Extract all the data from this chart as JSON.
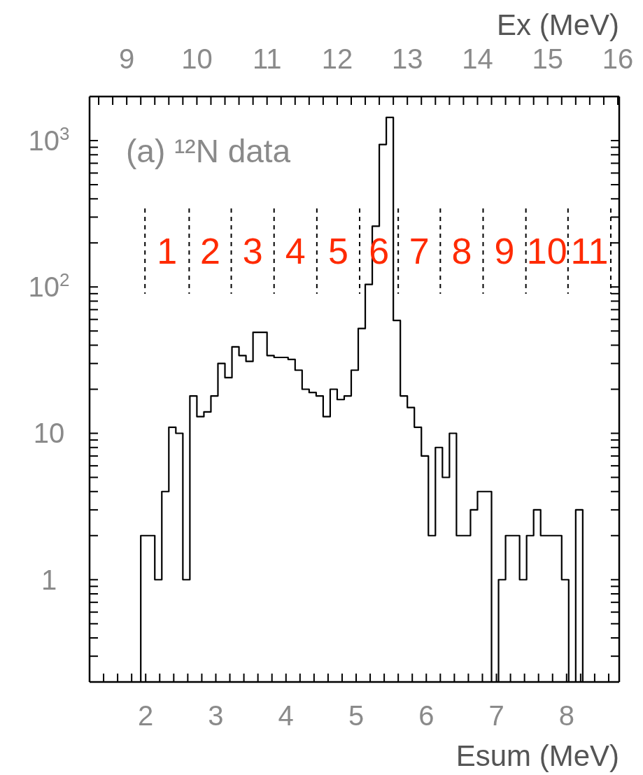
{
  "chart_data": {
    "type": "histogram",
    "title": "(a) ¹²N data",
    "xlabel": "Esum (MeV)",
    "x2label": "Ex (MeV)",
    "log": "y",
    "xlim": [
      1.2,
      8.75
    ],
    "x2lim": [
      8.47,
      16.02
    ],
    "ylim": [
      0.2,
      2000
    ],
    "xticks": [
      {
        "value": 1.2,
        "label": null
      },
      {
        "value": 1.4,
        "label": null
      },
      {
        "value": 1.6,
        "label": null
      },
      {
        "value": 1.8,
        "label": null
      },
      2,
      {
        "value": 2.2,
        "label": null
      },
      {
        "value": 2.4,
        "label": null
      },
      {
        "value": 2.6,
        "label": null
      },
      {
        "value": 2.8,
        "label": null
      },
      3,
      {
        "value": 3.2,
        "label": null
      },
      {
        "value": 3.4,
        "label": null
      },
      {
        "value": 3.6,
        "label": null
      },
      {
        "value": 3.8,
        "label": null
      },
      4,
      {
        "value": 4.2,
        "label": null
      },
      {
        "value": 4.4,
        "label": null
      },
      {
        "value": 4.6,
        "label": null
      },
      {
        "value": 4.8,
        "label": null
      },
      5,
      {
        "value": 5.2,
        "label": null
      },
      {
        "value": 5.4,
        "label": null
      },
      {
        "value": 5.6,
        "label": null
      },
      {
        "value": 5.8,
        "label": null
      },
      6,
      {
        "value": 6.2,
        "label": null
      },
      {
        "value": 6.4,
        "label": null
      },
      {
        "value": 6.6,
        "label": null
      },
      {
        "value": 6.8,
        "label": null
      },
      7,
      {
        "value": 7.2,
        "label": null
      },
      {
        "value": 7.4,
        "label": null
      },
      {
        "value": 7.6,
        "label": null
      },
      {
        "value": 7.8,
        "label": null
      },
      8,
      {
        "value": 8.2,
        "label": null
      },
      {
        "value": 8.4,
        "label": null
      },
      {
        "value": 8.6,
        "label": null
      }
    ],
    "x2ticks": [
      {
        "value": 8.6,
        "label": null
      },
      {
        "value": 8.8,
        "label": null
      },
      9,
      {
        "value": 9.2,
        "label": null
      },
      {
        "value": 9.4,
        "label": null
      },
      {
        "value": 9.6,
        "label": null
      },
      {
        "value": 9.8,
        "label": null
      },
      10,
      {
        "value": 10.2,
        "label": null
      },
      {
        "value": 10.4,
        "label": null
      },
      {
        "value": 10.6,
        "label": null
      },
      {
        "value": 10.8,
        "label": null
      },
      11,
      {
        "value": 11.2,
        "label": null
      },
      {
        "value": 11.4,
        "label": null
      },
      {
        "value": 11.6,
        "label": null
      },
      {
        "value": 11.8,
        "label": null
      },
      12,
      {
        "value": 12.2,
        "label": null
      },
      {
        "value": 12.4,
        "label": null
      },
      {
        "value": 12.6,
        "label": null
      },
      {
        "value": 12.8,
        "label": null
      },
      13,
      {
        "value": 13.2,
        "label": null
      },
      {
        "value": 13.4,
        "label": null
      },
      {
        "value": 13.6,
        "label": null
      },
      {
        "value": 13.8,
        "label": null
      },
      14,
      {
        "value": 14.2,
        "label": null
      },
      {
        "value": 14.4,
        "label": null
      },
      {
        "value": 14.6,
        "label": null
      },
      {
        "value": 14.8,
        "label": null
      },
      15,
      {
        "value": 15.2,
        "label": null
      },
      {
        "value": 15.4,
        "label": null
      },
      {
        "value": 15.6,
        "label": null
      },
      {
        "value": 15.8,
        "label": null
      },
      16
    ],
    "yticks": [
      {
        "value": 0.2,
        "label": null
      },
      {
        "value": 0.3,
        "label": null
      },
      {
        "value": 0.4,
        "label": null
      },
      {
        "value": 0.5,
        "label": null
      },
      {
        "value": 0.6,
        "label": null
      },
      {
        "value": 0.7,
        "label": null
      },
      {
        "value": 0.8,
        "label": null
      },
      {
        "value": 0.9,
        "label": null
      },
      1,
      {
        "value": 2,
        "label": null
      },
      {
        "value": 3,
        "label": null
      },
      {
        "value": 4,
        "label": null
      },
      {
        "value": 5,
        "label": null
      },
      {
        "value": 6,
        "label": null
      },
      {
        "value": 7,
        "label": null
      },
      {
        "value": 8,
        "label": null
      },
      {
        "value": 9,
        "label": null
      },
      10,
      {
        "value": 20,
        "label": null
      },
      {
        "value": 30,
        "label": null
      },
      {
        "value": 40,
        "label": null
      },
      {
        "value": 50,
        "label": null
      },
      {
        "value": 60,
        "label": null
      },
      {
        "value": 70,
        "label": null
      },
      {
        "value": 80,
        "label": null
      },
      {
        "value": 90,
        "label": null
      },
      {
        "value": 100,
        "label": "10$^{2}$"
      },
      {
        "value": 200,
        "label": null
      },
      {
        "value": 300,
        "label": null
      },
      {
        "value": 400,
        "label": null
      },
      {
        "value": 500,
        "label": null
      },
      {
        "value": 600,
        "label": null
      },
      {
        "value": 700,
        "label": null
      },
      {
        "value": 800,
        "label": null
      },
      {
        "value": 900,
        "label": null
      },
      {
        "value": 1000,
        "label": "10$^{3}$"
      }
    ],
    "color": "#000000",
    "bins": [
      1.93,
      2.03,
      2.13,
      2.23,
      2.33,
      2.43,
      2.53,
      2.63,
      2.73,
      2.83,
      2.93,
      3.03,
      3.13,
      3.23,
      3.33,
      3.43,
      3.53,
      3.63,
      3.73,
      3.83,
      3.93,
      4.03,
      4.13,
      4.23,
      4.33,
      4.43,
      4.53,
      4.63,
      4.73,
      4.83,
      4.93,
      5.03,
      5.13,
      5.23,
      5.33,
      5.43,
      5.53,
      5.63,
      5.73,
      5.83,
      5.93,
      6.03,
      6.13,
      6.23,
      6.33,
      6.43,
      6.53,
      6.63,
      6.73,
      6.83,
      6.93,
      7.03,
      7.13,
      7.23,
      7.33,
      7.43,
      7.53,
      7.63,
      7.73,
      7.83,
      7.93,
      8.03,
      8.13,
      8.23
    ],
    "values": [
      2,
      2,
      1,
      4,
      11,
      10,
      1,
      18,
      13,
      14,
      18,
      30,
      24,
      39,
      34,
      31,
      49,
      49,
      34,
      33,
      33,
      32,
      27,
      20,
      19,
      18,
      13,
      20,
      17,
      18,
      27,
      52,
      104,
      260,
      940,
      1440,
      59,
      18,
      15,
      11,
      7,
      2,
      8,
      5,
      10,
      2,
      2,
      3,
      4,
      4,
      null,
      1,
      2,
      2,
      1,
      2,
      3,
      2,
      2,
      2,
      1,
      null,
      3
    ],
    "ref_lines": [
      {
        "axis": "x",
        "value": 1.99,
        "color": "#000000",
        "line_style": "dashed"
      },
      {
        "axis": "x",
        "value": 2.62,
        "color": "#000000",
        "line_style": "dashed"
      },
      {
        "axis": "x",
        "value": 3.22,
        "color": "#000000",
        "line_style": "dashed"
      },
      {
        "axis": "x",
        "value": 3.83,
        "color": "#000000",
        "line_style": "dashed"
      },
      {
        "axis": "x",
        "value": 4.44,
        "color": "#000000",
        "line_style": "dashed"
      },
      {
        "axis": "x",
        "value": 5.05,
        "color": "#000000",
        "line_style": "dashed"
      },
      {
        "axis": "x",
        "value": 5.6,
        "color": "#000000",
        "line_style": "dashed"
      },
      {
        "axis": "x",
        "value": 6.2,
        "color": "#000000",
        "line_style": "dashed"
      },
      {
        "axis": "x",
        "value": 6.81,
        "color": "#000000",
        "line_style": "dashed"
      },
      {
        "axis": "x",
        "value": 7.42,
        "color": "#000000",
        "line_style": "dashed"
      },
      {
        "axis": "x",
        "value": 8.02,
        "color": "#000000",
        "line_style": "dashed"
      },
      {
        "axis": "x",
        "value": 8.63,
        "color": "#000000",
        "line_style": "dashed"
      }
    ],
    "annotations": [
      "1",
      "2",
      "3",
      "4",
      "5",
      "6",
      "7",
      "8",
      "9",
      "10",
      "11"
    ]
  }
}
